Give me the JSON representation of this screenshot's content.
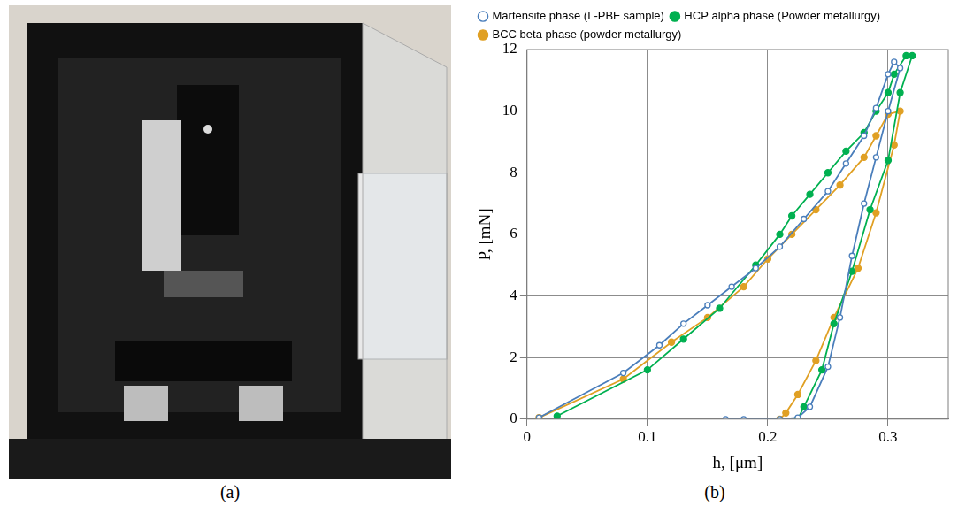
{
  "panel_labels": [
    "(a)",
    "(b)"
  ],
  "chart_data": {
    "type": "line",
    "x_label": "h, [μm]",
    "y_label": "P, [mN]",
    "xlim": [
      0,
      0.35
    ],
    "xticks": [
      0,
      0.1,
      0.2,
      0.3
    ],
    "ylim": [
      0,
      12
    ],
    "yticks": [
      0,
      2,
      4,
      6,
      8,
      10,
      12
    ],
    "grid": true,
    "legend": "top",
    "series": [
      {
        "name": "Martensite phase (L-PBF sample)",
        "color": "#4a7ebb",
        "marker": "open_circle",
        "x": [
          0.01,
          0.08,
          0.11,
          0.13,
          0.15,
          0.17,
          0.19,
          0.21,
          0.23,
          0.25,
          0.265,
          0.28,
          0.29,
          0.3,
          0.305,
          0.31,
          0.3,
          0.29,
          0.28,
          0.27,
          0.26,
          0.25,
          0.235,
          0.225,
          0.21,
          0.18,
          0.165
        ],
        "values": [
          0.05,
          1.5,
          2.4,
          3.1,
          3.7,
          4.3,
          4.9,
          5.6,
          6.5,
          7.4,
          8.3,
          9.2,
          10.1,
          11.2,
          11.6,
          11.4,
          10,
          8.5,
          7,
          5.3,
          3.3,
          1.7,
          0.4,
          0.05,
          0,
          0,
          0
        ]
      },
      {
        "name": "HCP alpha phase (Powder metallurgy)",
        "color": "#00b050",
        "marker": "circle",
        "x": [
          0.025,
          0.1,
          0.13,
          0.16,
          0.19,
          0.21,
          0.22,
          0.235,
          0.25,
          0.265,
          0.28,
          0.29,
          0.3,
          0.305,
          0.315,
          0.32,
          0.31,
          0.3,
          0.285,
          0.27,
          0.255,
          0.245,
          0.23,
          0.225
        ],
        "values": [
          0.1,
          1.6,
          2.6,
          3.6,
          5.0,
          6.0,
          6.6,
          7.3,
          8.0,
          8.7,
          9.3,
          10.0,
          10.6,
          11.2,
          11.8,
          11.8,
          10.6,
          8.4,
          6.8,
          4.8,
          3.1,
          1.6,
          0.4,
          0
        ]
      },
      {
        "name": "BCC beta phase (powder metallurgy)",
        "color": "#e0a024",
        "marker": "circle",
        "x": [
          0.01,
          0.08,
          0.12,
          0.15,
          0.18,
          0.2,
          0.22,
          0.24,
          0.26,
          0.28,
          0.29,
          0.3,
          0.31,
          0.305,
          0.29,
          0.275,
          0.255,
          0.24,
          0.225,
          0.215,
          0.21
        ],
        "values": [
          0.05,
          1.3,
          2.5,
          3.3,
          4.3,
          5.2,
          6.0,
          6.8,
          7.6,
          8.5,
          9.2,
          9.9,
          10.0,
          8.9,
          6.7,
          4.9,
          3.3,
          1.9,
          0.8,
          0.2,
          0
        ]
      }
    ]
  }
}
